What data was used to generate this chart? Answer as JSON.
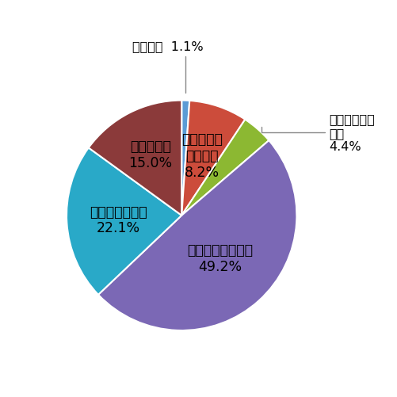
{
  "labels": [
    "数理科学",
    "物理・素粒\n子・宇宙\n8.2%",
    "物質・材料・化学",
    "工学・ものづくり\n49.2%",
    "バイオ・ライフ\n22.1%",
    "エネルギー\n15.0%"
  ],
  "values": [
    1.1,
    8.2,
    4.4,
    49.2,
    22.1,
    15.0
  ],
  "colors": [
    "#5b9bd5",
    "#cc4c3b",
    "#8cb832",
    "#7b68b5",
    "#29a9c8",
    "#8b3a3a"
  ],
  "startangle": 90,
  "background_color": "#ffffff",
  "text_color": "#000000",
  "fontsize_inside": 12.5,
  "fontsize_outside": 11.5,
  "ext_label_0_text": "数理科学  1.1%",
  "ext_label_2_text": "物質・材料・\n化学\n4.4%"
}
